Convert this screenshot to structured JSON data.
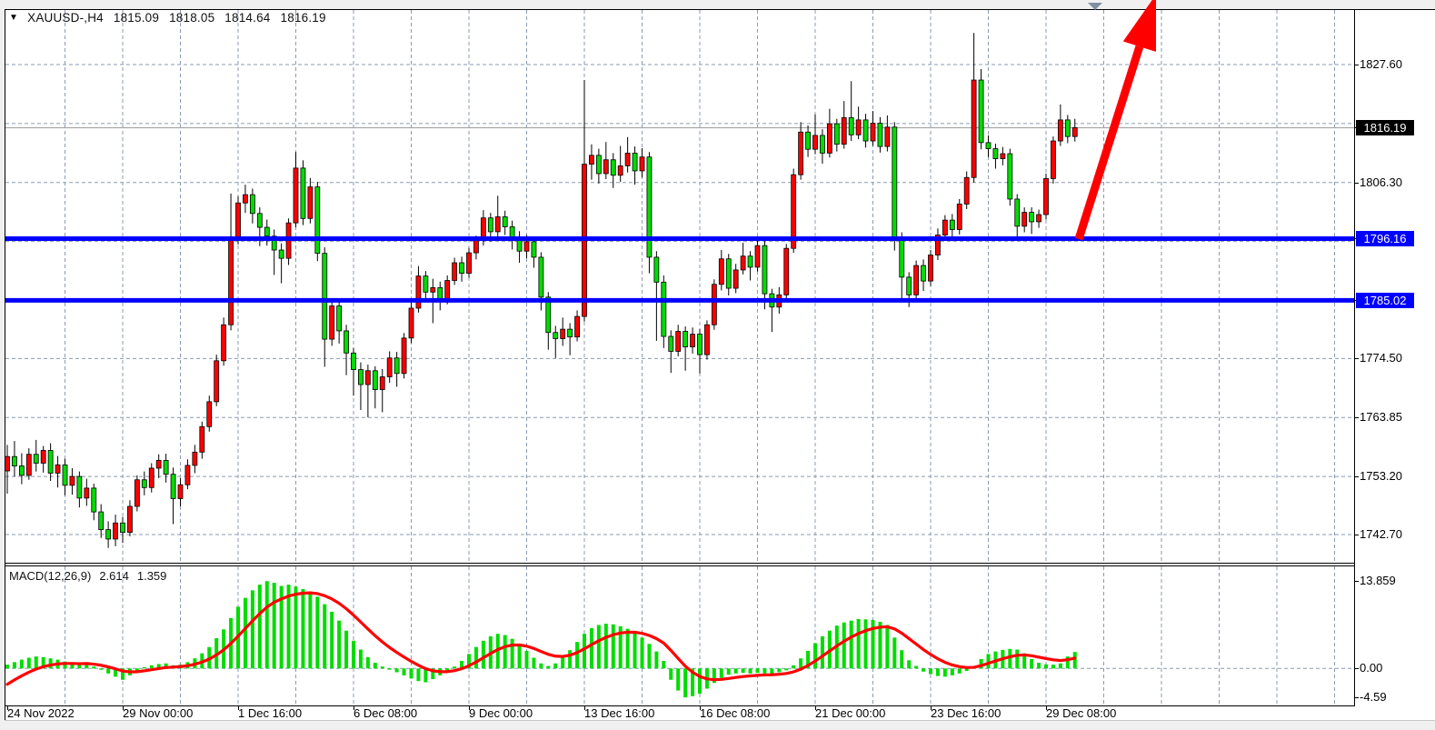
{
  "window": {
    "title_symbol": "XAUUSD-,H4",
    "open": "1815.09",
    "high": "1818.05",
    "low": "1814.64",
    "close": "1816.19"
  },
  "icons": {
    "dropdown": "▼",
    "shift_marker": "triangle-down"
  },
  "indicator": {
    "label": "MACD(12,26,9)",
    "main_value": "2.614",
    "signal_value": "1.359"
  },
  "price_badges": {
    "last": "1816.19",
    "resistance": "1796.16",
    "support": "1785.02"
  },
  "colors": {
    "bull_candle": "#ff0000",
    "bear_candle": "#00dc00",
    "wick": "#000000",
    "grid": "#8b9bb0",
    "level_line": "#0000ff",
    "last_price_line": "#a6a6a6",
    "badge_last_bg": "#000000",
    "badge_level_bg": "#0000ff",
    "macd_bar": "#00dc00",
    "macd_signal": "#ff0000",
    "trend_arrow": "#ff0000",
    "background": "#ffffff",
    "frame": "#000000"
  },
  "chart_data": [
    {
      "type": "candlestick",
      "title": "XAUUSD-,H4",
      "symbol": "XAUUSD-",
      "timeframe": "H4",
      "note": "inverted color scheme: red = bullish, green = bearish",
      "ylim": [
        1737.62,
        1837.45
      ],
      "y_tick_labels": [
        {
          "label": "1827.60",
          "value": 1827.6
        },
        {
          "label": "1806.30",
          "value": 1806.3
        },
        {
          "label": "1774.50",
          "value": 1774.5
        },
        {
          "label": "1763.85",
          "value": 1763.85
        },
        {
          "label": "1753.20",
          "value": 1753.2
        },
        {
          "label": "1742.70",
          "value": 1742.7
        }
      ],
      "y_gridlines": [
        1827.6,
        1816.95,
        1806.3,
        1795.65,
        1785.0,
        1774.5,
        1763.85,
        1753.2,
        1742.7
      ],
      "x_tick_labels": [
        "24 Nov 2022",
        "29 Nov 00:00",
        "1 Dec 16:00",
        "6 Dec 08:00",
        "9 Dec 00:00",
        "13 Dec 16:00",
        "16 Dec 08:00",
        "21 Dec 00:00",
        "23 Dec 16:00",
        "29 Dec 08:00"
      ],
      "candles_per_tick": 16,
      "x_start": 8,
      "pitch": 7.9375,
      "grid_every_candles": 8,
      "horizontal_lines": [
        {
          "price": 1796.16,
          "label": "1796.16"
        },
        {
          "price": 1785.02,
          "label": "1785.02"
        }
      ],
      "last_price": 1816.19,
      "trend_arrow": {
        "from_price": 1796.16,
        "direction": "up"
      },
      "candles": [
        [
          1754.2,
          1758.9,
          1750.1,
          1756.8
        ],
        [
          1756.8,
          1759.6,
          1753.2,
          1755.1
        ],
        [
          1755.1,
          1757.4,
          1751.8,
          1753.4
        ],
        [
          1753.4,
          1758.3,
          1752.6,
          1757.2
        ],
        [
          1757.2,
          1759.8,
          1754.1,
          1755.6
        ],
        [
          1755.6,
          1758.7,
          1753.9,
          1757.9
        ],
        [
          1757.9,
          1759.2,
          1752.4,
          1753.8
        ],
        [
          1753.8,
          1756.9,
          1751.2,
          1755.3
        ],
        [
          1755.3,
          1756.4,
          1749.8,
          1751.6
        ],
        [
          1751.6,
          1754.7,
          1749.9,
          1753.2
        ],
        [
          1753.2,
          1754.1,
          1747.6,
          1749.3
        ],
        [
          1749.3,
          1752.8,
          1747.9,
          1751.1
        ],
        [
          1751.1,
          1751.9,
          1745.3,
          1746.8
        ],
        [
          1746.8,
          1748.2,
          1742.1,
          1743.6
        ],
        [
          1743.6,
          1745.1,
          1740.3,
          1741.9
        ],
        [
          1741.9,
          1746.3,
          1740.6,
          1744.8
        ],
        [
          1744.8,
          1745.9,
          1741.2,
          1743.1
        ],
        [
          1743.1,
          1748.9,
          1742.4,
          1747.8
        ],
        [
          1747.8,
          1753.4,
          1746.9,
          1752.6
        ],
        [
          1752.6,
          1754.1,
          1749.8,
          1751.2
        ],
        [
          1751.2,
          1755.6,
          1750.3,
          1754.7
        ],
        [
          1754.7,
          1757.2,
          1752.9,
          1756.1
        ],
        [
          1756.1,
          1757.3,
          1752.1,
          1753.6
        ],
        [
          1753.6,
          1754.8,
          1744.6,
          1749.2
        ],
        [
          1749.2,
          1752.9,
          1747.8,
          1751.7
        ],
        [
          1751.7,
          1756.3,
          1750.9,
          1755.2
        ],
        [
          1755.2,
          1758.9,
          1753.8,
          1757.6
        ],
        [
          1757.6,
          1763.1,
          1756.4,
          1762.2
        ],
        [
          1762.2,
          1767.8,
          1761.3,
          1766.7
        ],
        [
          1766.7,
          1775.2,
          1765.9,
          1774.1
        ],
        [
          1774.1,
          1781.9,
          1773.2,
          1780.6
        ],
        [
          1780.6,
          1804.3,
          1779.6,
          1796.2
        ],
        [
          1796.2,
          1803.8,
          1795.1,
          1802.6
        ],
        [
          1802.6,
          1805.9,
          1800.8,
          1804.1
        ],
        [
          1804.1,
          1805.2,
          1798.9,
          1800.7
        ],
        [
          1800.7,
          1801.8,
          1794.8,
          1798.2
        ],
        [
          1798.2,
          1799.6,
          1794.9,
          1796.6
        ],
        [
          1796.6,
          1797.8,
          1789.6,
          1794.1
        ],
        [
          1794.1,
          1795.3,
          1788.1,
          1792.6
        ],
        [
          1792.6,
          1799.8,
          1791.4,
          1799.0
        ],
        [
          1799.0,
          1811.8,
          1798.2,
          1808.9
        ],
        [
          1808.9,
          1810.3,
          1798.6,
          1799.8
        ],
        [
          1799.8,
          1807.1,
          1798.9,
          1805.5
        ],
        [
          1805.5,
          1806.4,
          1792.1,
          1793.5
        ],
        [
          1793.5,
          1794.6,
          1773.0,
          1778.0
        ],
        [
          1778.0,
          1785.1,
          1776.8,
          1784.0
        ],
        [
          1784.0,
          1784.9,
          1777.2,
          1779.5
        ],
        [
          1779.5,
          1780.6,
          1771.5,
          1775.5
        ],
        [
          1775.5,
          1776.4,
          1767.8,
          1772.5
        ],
        [
          1772.5,
          1773.8,
          1765.2,
          1769.8
        ],
        [
          1769.8,
          1773.4,
          1763.9,
          1772.3
        ],
        [
          1772.3,
          1773.1,
          1765.5,
          1768.9
        ],
        [
          1768.9,
          1772.6,
          1764.8,
          1771.2
        ],
        [
          1771.2,
          1775.8,
          1770.1,
          1774.6
        ],
        [
          1774.6,
          1775.7,
          1769.4,
          1771.8
        ],
        [
          1771.8,
          1779.1,
          1770.9,
          1778.2
        ],
        [
          1778.2,
          1784.7,
          1777.3,
          1783.6
        ],
        [
          1783.6,
          1791.2,
          1782.8,
          1789.4
        ],
        [
          1789.4,
          1790.3,
          1784.9,
          1786.5
        ],
        [
          1786.5,
          1788.9,
          1780.9,
          1787.3
        ],
        [
          1787.3,
          1788.4,
          1783.2,
          1785.1
        ],
        [
          1785.1,
          1789.5,
          1784.3,
          1788.6
        ],
        [
          1788.6,
          1792.7,
          1787.8,
          1791.8
        ],
        [
          1791.8,
          1792.9,
          1788.4,
          1789.9
        ],
        [
          1789.9,
          1794.5,
          1789.1,
          1793.6
        ],
        [
          1793.6,
          1796.7,
          1792.4,
          1795.8
        ],
        [
          1795.8,
          1801.3,
          1794.9,
          1799.9
        ],
        [
          1799.9,
          1800.8,
          1795.6,
          1797.4
        ],
        [
          1797.4,
          1803.9,
          1796.5,
          1800.1
        ],
        [
          1800.1,
          1801.2,
          1796.8,
          1798.3
        ],
        [
          1798.3,
          1799.4,
          1794.2,
          1796.4
        ],
        [
          1796.4,
          1797.5,
          1791.8,
          1793.9
        ],
        [
          1793.9,
          1796.8,
          1792.6,
          1795.6
        ],
        [
          1795.6,
          1796.5,
          1790.9,
          1792.8
        ],
        [
          1792.8,
          1793.7,
          1783.2,
          1785.6
        ],
        [
          1785.6,
          1786.5,
          1776.1,
          1779.2
        ],
        [
          1779.2,
          1780.4,
          1774.6,
          1778.1
        ],
        [
          1778.1,
          1781.9,
          1776.8,
          1779.8
        ],
        [
          1779.8,
          1780.9,
          1775.1,
          1778.4
        ],
        [
          1778.4,
          1783.2,
          1777.6,
          1782.1
        ],
        [
          1782.1,
          1824.8,
          1781.2,
          1809.6
        ],
        [
          1809.6,
          1813.2,
          1806.8,
          1811.2
        ],
        [
          1811.2,
          1812.4,
          1806.1,
          1807.9
        ],
        [
          1807.9,
          1813.6,
          1806.9,
          1810.4
        ],
        [
          1810.4,
          1811.6,
          1805.3,
          1807.6
        ],
        [
          1807.6,
          1812.9,
          1806.4,
          1809.3
        ],
        [
          1809.3,
          1814.5,
          1808.1,
          1811.6
        ],
        [
          1811.6,
          1812.8,
          1805.9,
          1808.4
        ],
        [
          1808.4,
          1812.5,
          1807.2,
          1810.9
        ],
        [
          1810.9,
          1811.8,
          1789.9,
          1792.8
        ],
        [
          1792.8,
          1793.9,
          1777.7,
          1788.3
        ],
        [
          1788.3,
          1789.5,
          1776.4,
          1778.5
        ],
        [
          1778.5,
          1779.6,
          1771.9,
          1775.8
        ],
        [
          1775.8,
          1780.6,
          1774.9,
          1779.4
        ],
        [
          1779.4,
          1780.3,
          1772.3,
          1776.6
        ],
        [
          1776.6,
          1780.1,
          1775.4,
          1778.9
        ],
        [
          1778.9,
          1779.8,
          1771.8,
          1775.2
        ],
        [
          1775.2,
          1781.4,
          1774.3,
          1780.6
        ],
        [
          1780.6,
          1788.8,
          1779.7,
          1787.9
        ],
        [
          1787.9,
          1794.1,
          1786.8,
          1792.5
        ],
        [
          1792.5,
          1793.4,
          1785.9,
          1787.2
        ],
        [
          1787.2,
          1791.6,
          1786.3,
          1790.5
        ],
        [
          1790.5,
          1795.4,
          1789.7,
          1793.0
        ],
        [
          1793.0,
          1793.9,
          1788.6,
          1791.0
        ],
        [
          1791.0,
          1796.3,
          1790.2,
          1794.9
        ],
        [
          1794.9,
          1795.8,
          1783.4,
          1786.2
        ],
        [
          1786.2,
          1787.1,
          1779.3,
          1783.8
        ],
        [
          1783.8,
          1787.4,
          1782.6,
          1786.0
        ],
        [
          1786.0,
          1795.2,
          1785.1,
          1794.4
        ],
        [
          1794.4,
          1808.8,
          1793.6,
          1807.7
        ],
        [
          1807.7,
          1817.2,
          1806.8,
          1815.4
        ],
        [
          1815.4,
          1816.6,
          1810.9,
          1812.3
        ],
        [
          1812.3,
          1818.6,
          1811.4,
          1814.8
        ],
        [
          1814.8,
          1815.9,
          1809.7,
          1811.6
        ],
        [
          1811.6,
          1819.6,
          1810.8,
          1816.9
        ],
        [
          1816.9,
          1817.8,
          1811.9,
          1813.2
        ],
        [
          1813.2,
          1821.0,
          1812.4,
          1818.0
        ],
        [
          1818.0,
          1824.6,
          1813.8,
          1814.9
        ],
        [
          1814.9,
          1820.0,
          1814.1,
          1817.6
        ],
        [
          1817.6,
          1818.7,
          1812.6,
          1813.8
        ],
        [
          1813.8,
          1819.2,
          1812.9,
          1817.0
        ],
        [
          1817.0,
          1818.1,
          1811.7,
          1812.8
        ],
        [
          1812.8,
          1818.4,
          1811.9,
          1816.3
        ],
        [
          1816.3,
          1817.2,
          1794.0,
          1796.1
        ],
        [
          1796.1,
          1797.3,
          1785.2,
          1789.2
        ],
        [
          1789.2,
          1790.1,
          1783.8,
          1786.0
        ],
        [
          1786.0,
          1792.2,
          1785.1,
          1791.3
        ],
        [
          1791.3,
          1792.4,
          1786.7,
          1788.5
        ],
        [
          1788.5,
          1794.1,
          1787.6,
          1793.2
        ],
        [
          1793.2,
          1798.0,
          1792.3,
          1796.8
        ],
        [
          1796.8,
          1800.4,
          1795.9,
          1799.5
        ],
        [
          1799.5,
          1800.6,
          1795.7,
          1797.8
        ],
        [
          1797.8,
          1803.3,
          1796.9,
          1802.4
        ],
        [
          1802.4,
          1808.3,
          1801.5,
          1807.2
        ],
        [
          1807.2,
          1833.3,
          1806.3,
          1824.8
        ],
        [
          1824.8,
          1826.8,
          1812.3,
          1813.5
        ],
        [
          1813.5,
          1814.8,
          1810.9,
          1812.4
        ],
        [
          1812.4,
          1813.3,
          1808.8,
          1810.6
        ],
        [
          1810.6,
          1812.7,
          1809.4,
          1811.5
        ],
        [
          1811.5,
          1812.4,
          1802.1,
          1803.3
        ],
        [
          1803.3,
          1804.2,
          1796.5,
          1798.4
        ],
        [
          1798.4,
          1801.8,
          1797.3,
          1800.9
        ],
        [
          1800.9,
          1801.8,
          1797.0,
          1799.2
        ],
        [
          1799.2,
          1801.4,
          1798.1,
          1800.5
        ],
        [
          1800.5,
          1807.9,
          1799.6,
          1807.0
        ],
        [
          1807.0,
          1814.6,
          1806.1,
          1813.8
        ],
        [
          1813.8,
          1820.4,
          1812.9,
          1817.6
        ],
        [
          1817.6,
          1818.5,
          1813.4,
          1814.6
        ],
        [
          1814.6,
          1817.8,
          1813.7,
          1816.19
        ]
      ]
    },
    {
      "type": "bar",
      "title": "MACD(12,26,9)",
      "ylim": [
        -5.873,
        16.205
      ],
      "y_tick_labels": [
        {
          "label": "13.859",
          "value": 13.859
        },
        {
          "label": "0.00",
          "value": 0.0
        },
        {
          "label": "-4.59",
          "value": -4.59
        }
      ],
      "zero_line": true,
      "signal_ema_period": 9,
      "signal_seed": -3.3,
      "last_main": 2.614,
      "last_signal": 1.359,
      "values": [
        0.6,
        1.0,
        1.4,
        1.7,
        1.9,
        1.8,
        1.6,
        1.4,
        1.1,
        0.8,
        0.6,
        0.9,
        0.3,
        -0.2,
        -0.8,
        -1.3,
        -1.8,
        -1.1,
        -0.4,
        0.2,
        0.5,
        0.7,
        0.8,
        0.5,
        0.6,
        1.0,
        1.6,
        2.4,
        3.4,
        4.8,
        6.2,
        8.0,
        9.8,
        11.2,
        12.4,
        13.3,
        13.86,
        13.6,
        13.1,
        13.3,
        13.0,
        12.6,
        12.2,
        11.4,
        10.2,
        9.0,
        7.6,
        6.0,
        4.4,
        3.0,
        1.8,
        0.9,
        0.3,
        -0.2,
        -0.6,
        -1.1,
        -1.6,
        -2.0,
        -2.2,
        -1.7,
        -1.1,
        -0.5,
        0.3,
        1.2,
        2.3,
        3.4,
        4.4,
        5.1,
        5.5,
        5.3,
        4.7,
        3.8,
        2.8,
        1.7,
        0.8,
        0.4,
        0.8,
        1.7,
        2.9,
        4.2,
        5.5,
        6.4,
        6.9,
        7.1,
        7.0,
        6.7,
        6.3,
        5.7,
        4.9,
        3.9,
        2.7,
        1.2,
        -1.8,
        -3.5,
        -4.59,
        -4.4,
        -4.0,
        -3.2,
        -2.3,
        -1.5,
        -1.0,
        -0.8,
        -0.7,
        -0.8,
        -0.7,
        -0.8,
        -0.9,
        -0.6,
        -0.3,
        0.5,
        1.6,
        2.8,
        4.0,
        5.1,
        6.0,
        6.8,
        7.3,
        7.6,
        7.85,
        7.8,
        7.7,
        7.4,
        6.9,
        4.9,
        2.9,
        1.3,
        0.4,
        -0.5,
        -0.9,
        -1.2,
        -1.3,
        -1.1,
        -0.8,
        -0.4,
        0.3,
        1.5,
        2.3,
        2.7,
        2.95,
        3.1,
        3.0,
        2.4,
        1.5,
        0.9,
        0.65,
        0.6,
        0.8,
        1.9,
        2.614
      ]
    }
  ]
}
